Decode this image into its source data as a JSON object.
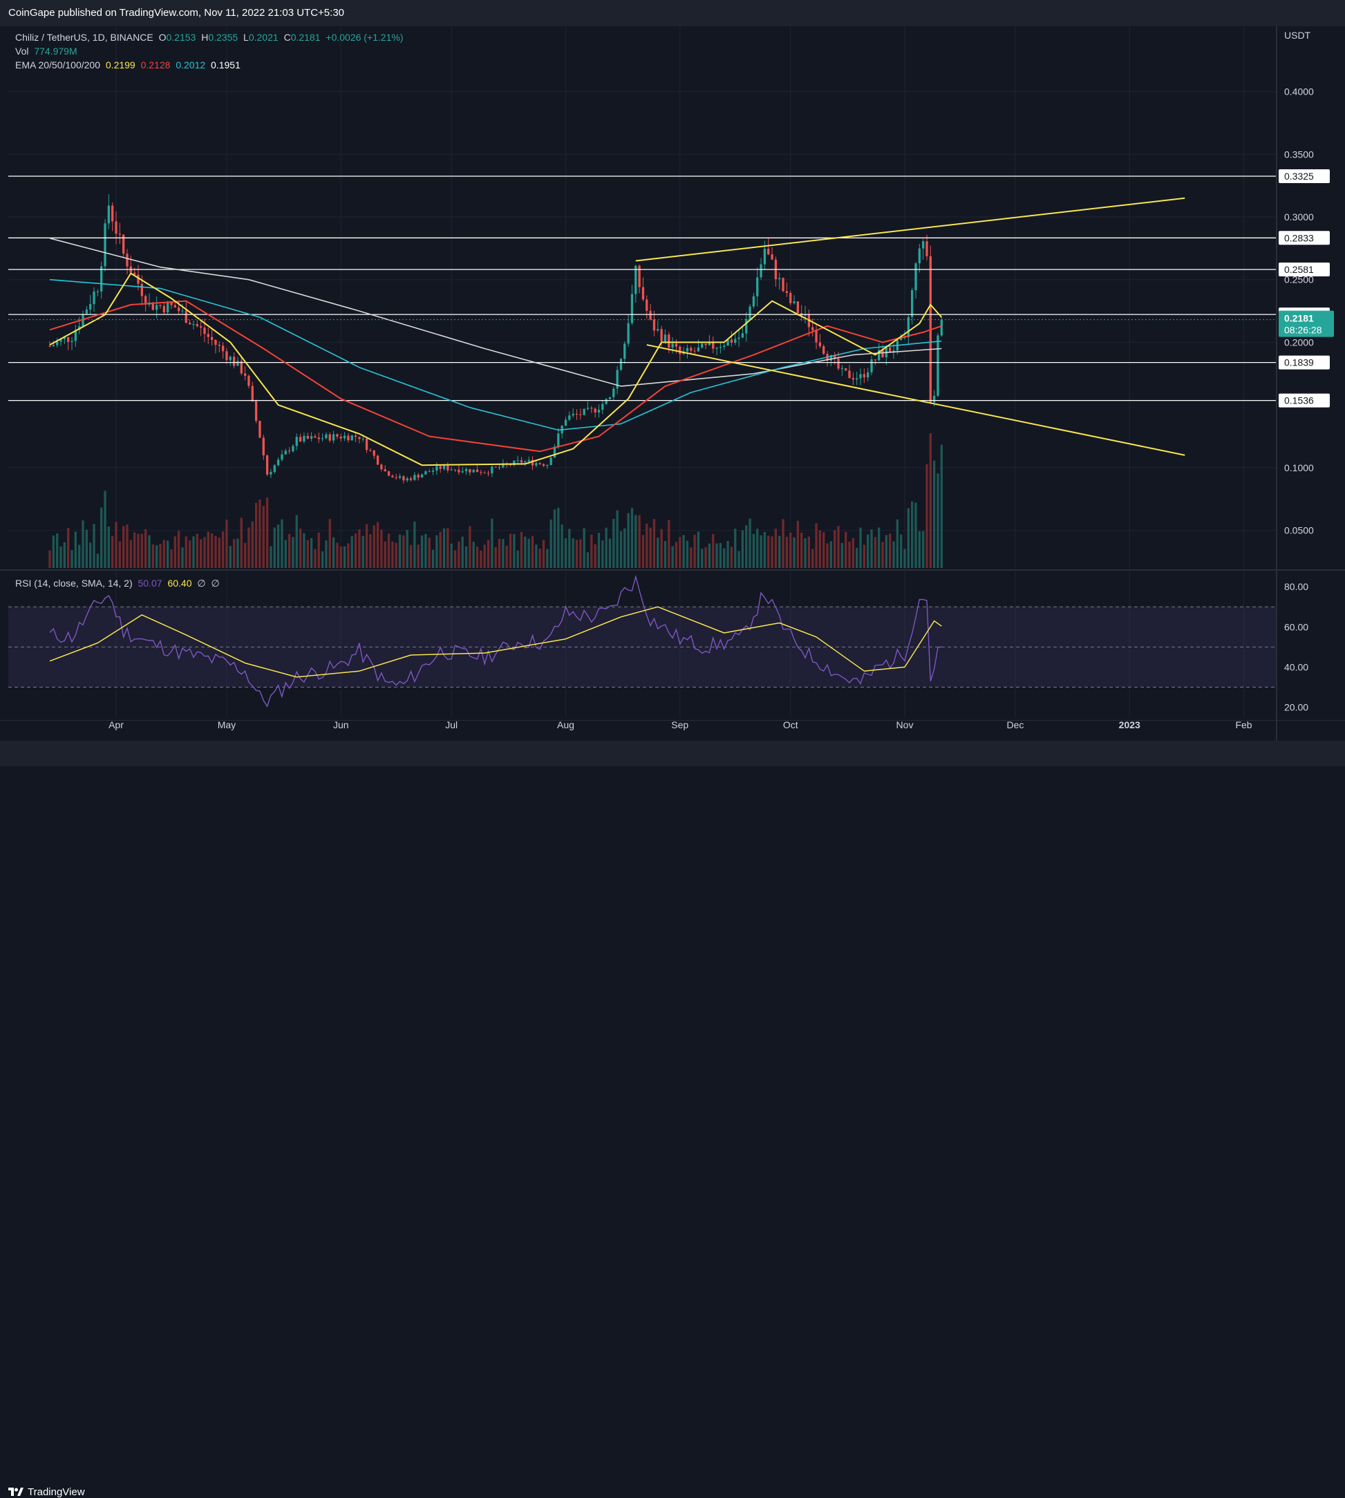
{
  "header": {
    "published": "CoinGape published on TradingView.com, Nov 11, 2022 21:03 UTC+5:30"
  },
  "footer": {
    "brand": "TradingView"
  },
  "legend": {
    "symbol": "Chiliz / TetherUS, 1D, BINANCE",
    "o_label": "O",
    "o_value": "0.2153",
    "h_label": "H",
    "h_value": "0.2355",
    "l_label": "L",
    "l_value": "0.2021",
    "c_label": "C",
    "c_value": "0.2181",
    "change": "+0.0026 (+1.21%)",
    "vol_label": "Vol",
    "vol_value": "774.979M",
    "ema_label": "EMA 20/50/100/200",
    "ema20": "0.2199",
    "ema50": "0.2128",
    "ema100": "0.2012",
    "ema200": "0.1951",
    "rsi_label": "RSI (14, close, SMA, 14, 2)",
    "rsi_value": "50.07",
    "rsi_sma": "60.40",
    "na1": "∅",
    "na2": "∅"
  },
  "colors": {
    "up": "#26a69a",
    "down": "#ef5350",
    "ema20": "#fbe74d",
    "ema50": "#f44336",
    "ema100": "#26c6da",
    "ema200": "#d9d9d9",
    "trend": "#fbe74d",
    "rsi": "#7e57c2",
    "rsi_sma": "#fbe74d"
  },
  "chart_data": [
    {
      "type": "candlestick",
      "title": "Chiliz / TetherUS, 1D, BINANCE",
      "currency": "USDT",
      "x_ticks": [
        "Apr",
        "May",
        "Jun",
        "Jul",
        "Aug",
        "Sep",
        "Oct",
        "Nov",
        "Dec",
        "2023",
        "Feb"
      ],
      "y_ticks": [
        "0.4000",
        "0.3500",
        "0.3000",
        "0.2500",
        "0.2000",
        "0.1000",
        "0.0500"
      ],
      "ylim": [
        0.02,
        0.44
      ],
      "horizontal_levels": [
        "0.3325",
        "0.2833",
        "0.2581",
        "0.2222",
        "0.1839",
        "0.1536"
      ],
      "last_price": "0.2181",
      "countdown": "08:26:28",
      "close_path": [
        [
          "2022-03-14",
          0.197
        ],
        [
          "2022-03-20",
          0.205
        ],
        [
          "2022-03-27",
          0.245
        ],
        [
          "2022-03-30",
          0.31
        ],
        [
          "2022-04-03",
          0.27
        ],
        [
          "2022-04-10",
          0.23
        ],
        [
          "2022-04-17",
          0.228
        ],
        [
          "2022-04-24",
          0.21
        ],
        [
          "2022-05-01",
          0.19
        ],
        [
          "2022-05-06",
          0.175
        ],
        [
          "2022-05-10",
          0.125
        ],
        [
          "2022-05-12",
          0.095
        ],
        [
          "2022-05-20",
          0.122
        ],
        [
          "2022-05-31",
          0.125
        ],
        [
          "2022-06-06",
          0.125
        ],
        [
          "2022-06-13",
          0.097
        ],
        [
          "2022-06-18",
          0.09
        ],
        [
          "2022-06-28",
          0.1
        ],
        [
          "2022-07-10",
          0.097
        ],
        [
          "2022-07-20",
          0.105
        ],
        [
          "2022-07-27",
          0.103
        ],
        [
          "2022-08-01",
          0.14
        ],
        [
          "2022-08-08",
          0.145
        ],
        [
          "2022-08-13",
          0.155
        ],
        [
          "2022-08-17",
          0.2
        ],
        [
          "2022-08-20",
          0.255
        ],
        [
          "2022-08-24",
          0.215
        ],
        [
          "2022-09-01",
          0.19
        ],
        [
          "2022-09-08",
          0.195
        ],
        [
          "2022-09-13",
          0.2
        ],
        [
          "2022-09-18",
          0.205
        ],
        [
          "2022-09-24",
          0.275
        ],
        [
          "2022-09-30",
          0.235
        ],
        [
          "2022-10-06",
          0.215
        ],
        [
          "2022-10-11",
          0.19
        ],
        [
          "2022-10-15",
          0.175
        ],
        [
          "2022-10-20",
          0.172
        ],
        [
          "2022-10-25",
          0.19
        ],
        [
          "2022-11-01",
          0.2
        ],
        [
          "2022-11-05",
          0.28
        ],
        [
          "2022-11-07",
          0.27
        ],
        [
          "2022-11-08",
          0.155
        ],
        [
          "2022-11-09",
          0.16
        ],
        [
          "2022-11-10",
          0.21
        ],
        [
          "2022-11-11",
          0.2181
        ]
      ],
      "ema20_path": [
        [
          "2022-03-14",
          0.198
        ],
        [
          "2022-03-29",
          0.222
        ],
        [
          "2022-04-05",
          0.255
        ],
        [
          "2022-04-16",
          0.235
        ],
        [
          "2022-05-02",
          0.2
        ],
        [
          "2022-05-15",
          0.15
        ],
        [
          "2022-06-06",
          0.127
        ],
        [
          "2022-06-23",
          0.102
        ],
        [
          "2022-07-21",
          0.103
        ],
        [
          "2022-08-03",
          0.115
        ],
        [
          "2022-08-18",
          0.155
        ],
        [
          "2022-08-27",
          0.2
        ],
        [
          "2022-09-13",
          0.2
        ],
        [
          "2022-09-26",
          0.233
        ],
        [
          "2022-10-11",
          0.21
        ],
        [
          "2022-10-24",
          0.19
        ],
        [
          "2022-11-05",
          0.215
        ],
        [
          "2022-11-08",
          0.23
        ],
        [
          "2022-11-11",
          0.22
        ]
      ],
      "ema50_path": [
        [
          "2022-03-14",
          0.21
        ],
        [
          "2022-04-05",
          0.23
        ],
        [
          "2022-04-20",
          0.233
        ],
        [
          "2022-05-11",
          0.195
        ],
        [
          "2022-06-01",
          0.155
        ],
        [
          "2022-06-25",
          0.125
        ],
        [
          "2022-07-25",
          0.113
        ],
        [
          "2022-08-10",
          0.125
        ],
        [
          "2022-08-28",
          0.165
        ],
        [
          "2022-09-21",
          0.19
        ],
        [
          "2022-10-11",
          0.213
        ],
        [
          "2022-10-26",
          0.2
        ],
        [
          "2022-11-06",
          0.208
        ],
        [
          "2022-11-11",
          0.213
        ]
      ],
      "ema100_path": [
        [
          "2022-03-14",
          0.25
        ],
        [
          "2022-04-13",
          0.243
        ],
        [
          "2022-05-10",
          0.22
        ],
        [
          "2022-06-06",
          0.18
        ],
        [
          "2022-07-06",
          0.148
        ],
        [
          "2022-07-30",
          0.13
        ],
        [
          "2022-08-16",
          0.135
        ],
        [
          "2022-09-04",
          0.16
        ],
        [
          "2022-09-29",
          0.18
        ],
        [
          "2022-10-21",
          0.195
        ],
        [
          "2022-11-11",
          0.201
        ]
      ],
      "ema200_path": [
        [
          "2022-03-14",
          0.283
        ],
        [
          "2022-04-13",
          0.26
        ],
        [
          "2022-05-07",
          0.25
        ],
        [
          "2022-06-06",
          0.225
        ],
        [
          "2022-07-10",
          0.195
        ],
        [
          "2022-08-16",
          0.165
        ],
        [
          "2022-09-21",
          0.175
        ],
        [
          "2022-10-18",
          0.19
        ],
        [
          "2022-11-11",
          0.195
        ]
      ],
      "trendlines": [
        {
          "from": [
            "2022-08-20",
            0.265
          ],
          "to": [
            "2023-01-16",
            0.315
          ]
        },
        {
          "from": [
            "2022-08-23",
            0.198
          ],
          "to": [
            "2023-01-16",
            0.11
          ]
        }
      ]
    },
    {
      "type": "line",
      "title": "RSI (14, close, SMA, 14, 2)",
      "y_ticks": [
        "80.00",
        "60.00",
        "40.00",
        "20.00"
      ],
      "ylim": [
        15,
        88
      ],
      "band": [
        30,
        70
      ],
      "midline": 50,
      "series": [
        {
          "name": "RSI",
          "values": [
            [
              "2022-03-14",
              56
            ],
            [
              "2022-03-20",
              55
            ],
            [
              "2022-03-27",
              72
            ],
            [
              "2022-03-30",
              76
            ],
            [
              "2022-04-03",
              58
            ],
            [
              "2022-04-10",
              52
            ],
            [
              "2022-04-17",
              48
            ],
            [
              "2022-04-24",
              45
            ],
            [
              "2022-05-01",
              42
            ],
            [
              "2022-05-06",
              38
            ],
            [
              "2022-05-10",
              25
            ],
            [
              "2022-05-12",
              23
            ],
            [
              "2022-05-20",
              35
            ],
            [
              "2022-05-31",
              40
            ],
            [
              "2022-06-06",
              48
            ],
            [
              "2022-06-13",
              32
            ],
            [
              "2022-06-18",
              31
            ],
            [
              "2022-06-28",
              48
            ],
            [
              "2022-07-10",
              45
            ],
            [
              "2022-07-20",
              53
            ],
            [
              "2022-07-27",
              52
            ],
            [
              "2022-08-01",
              67
            ],
            [
              "2022-08-08",
              65
            ],
            [
              "2022-08-13",
              68
            ],
            [
              "2022-08-17",
              78
            ],
            [
              "2022-08-20",
              83
            ],
            [
              "2022-08-24",
              64
            ],
            [
              "2022-09-01",
              54
            ],
            [
              "2022-09-08",
              50
            ],
            [
              "2022-09-13",
              52
            ],
            [
              "2022-09-18",
              55
            ],
            [
              "2022-09-24",
              77
            ],
            [
              "2022-09-30",
              57
            ],
            [
              "2022-10-06",
              46
            ],
            [
              "2022-10-11",
              40
            ],
            [
              "2022-10-15",
              35
            ],
            [
              "2022-10-20",
              32
            ],
            [
              "2022-10-25",
              40
            ],
            [
              "2022-11-01",
              47
            ],
            [
              "2022-11-05",
              74
            ],
            [
              "2022-11-07",
              75
            ],
            [
              "2022-11-08",
              33
            ],
            [
              "2022-11-09",
              36
            ],
            [
              "2022-11-10",
              49
            ],
            [
              "2022-11-11",
              50.07
            ]
          ]
        },
        {
          "name": "SMA",
          "values": [
            [
              "2022-03-14",
              43
            ],
            [
              "2022-03-27",
              52
            ],
            [
              "2022-04-08",
              66
            ],
            [
              "2022-04-20",
              56
            ],
            [
              "2022-05-06",
              42
            ],
            [
              "2022-05-20",
              35
            ],
            [
              "2022-06-06",
              38
            ],
            [
              "2022-06-20",
              46
            ],
            [
              "2022-07-10",
              47
            ],
            [
              "2022-08-01",
              54
            ],
            [
              "2022-08-16",
              65
            ],
            [
              "2022-08-26",
              70
            ],
            [
              "2022-09-13",
              57
            ],
            [
              "2022-09-28",
              62
            ],
            [
              "2022-10-08",
              55
            ],
            [
              "2022-10-21",
              38
            ],
            [
              "2022-11-01",
              40
            ],
            [
              "2022-11-09",
              63
            ],
            [
              "2022-11-11",
              60.4
            ]
          ]
        }
      ]
    }
  ]
}
